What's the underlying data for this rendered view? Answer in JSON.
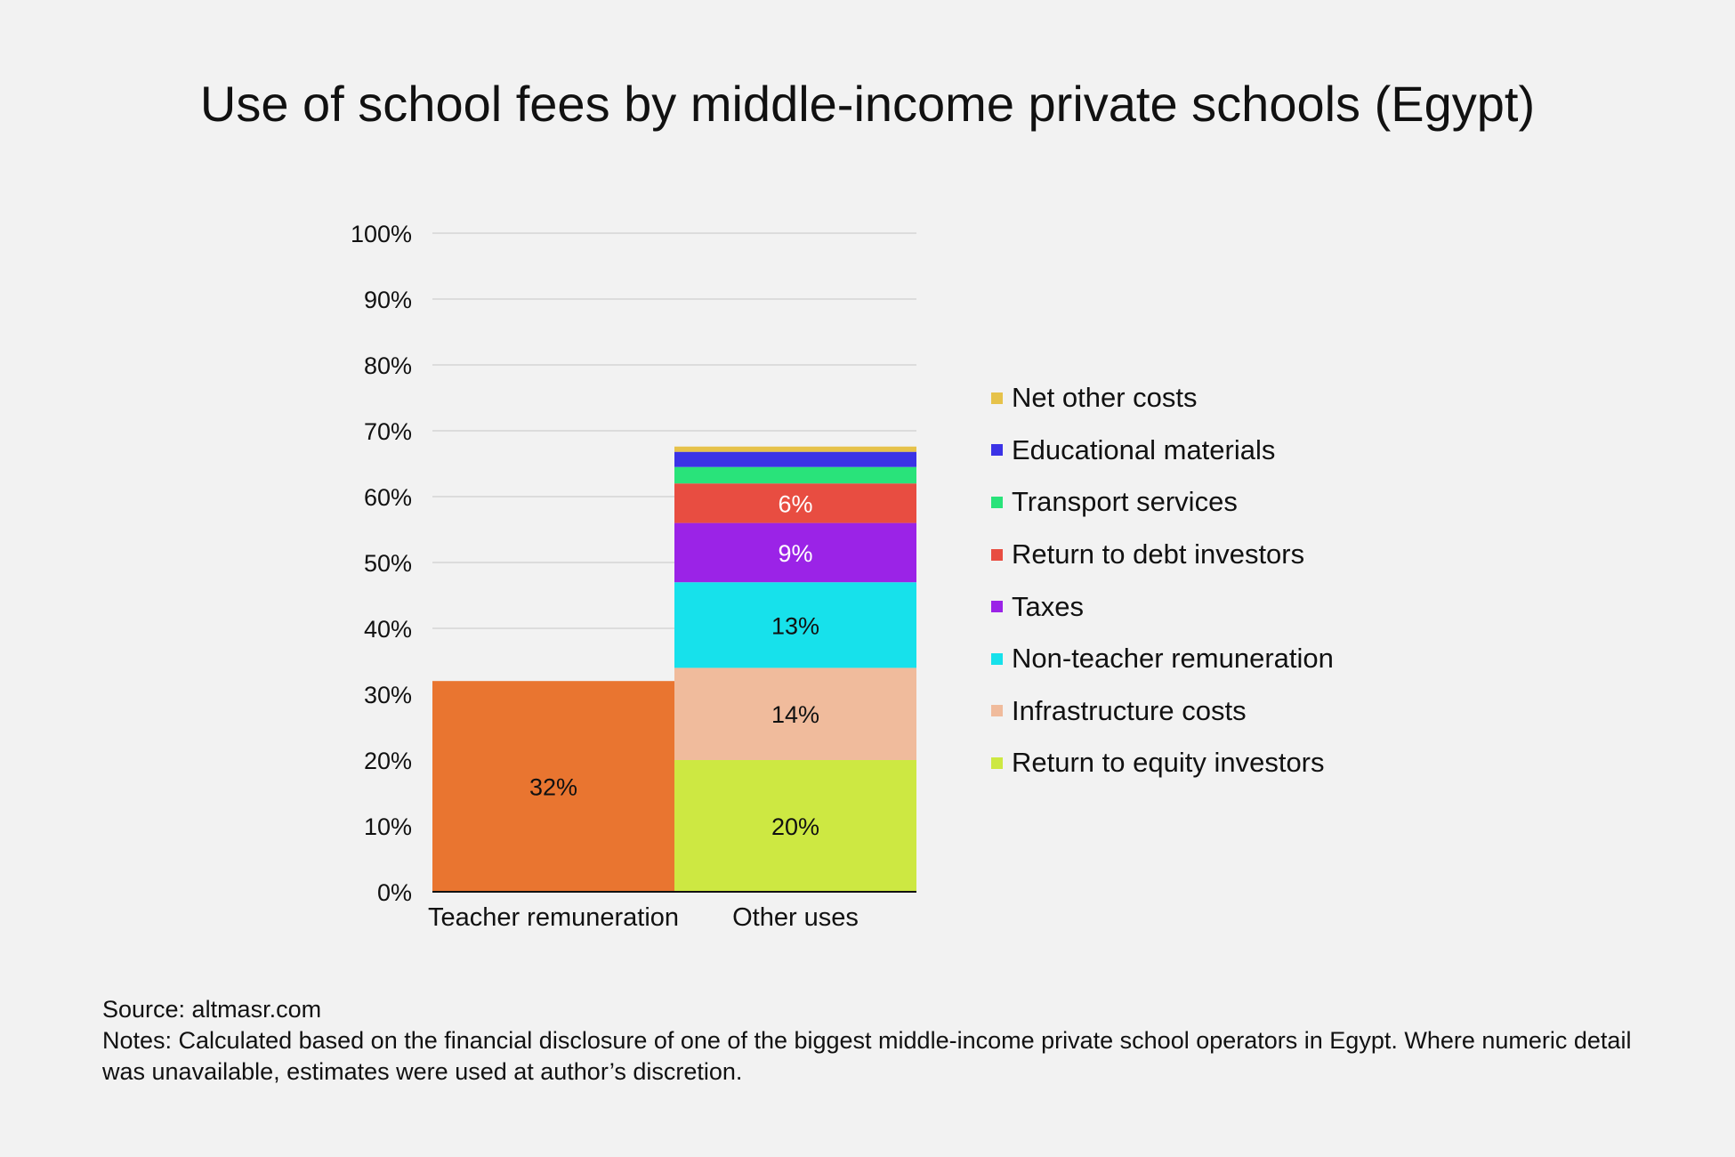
{
  "title": "Use of school fees by middle-income private schools (Egypt)",
  "chart_data": {
    "type": "bar",
    "stacked": true,
    "categories": [
      "Teacher remuneration",
      "Other uses"
    ],
    "ylim": [
      0,
      100
    ],
    "yticks": [
      "0%",
      "10%",
      "20%",
      "30%",
      "40%",
      "50%",
      "60%",
      "70%",
      "80%",
      "90%",
      "100%"
    ],
    "grid": true,
    "legend_position": "right",
    "series": [
      {
        "name": "Teacher remuneration",
        "color": "#e97530",
        "values": [
          32,
          0
        ],
        "label": "32%",
        "label_color": "#111111"
      },
      {
        "name": "Return to equity investors",
        "color": "#cde842",
        "values": [
          0,
          20
        ],
        "label": "20%",
        "label_color": "#111111"
      },
      {
        "name": "Infrastructure costs",
        "color": "#f0bb9c",
        "values": [
          0,
          14
        ],
        "label": "14%",
        "label_color": "#111111"
      },
      {
        "name": "Non-teacher remuneration",
        "color": "#17e1eb",
        "values": [
          0,
          13
        ],
        "label": "13%",
        "label_color": "#111111"
      },
      {
        "name": "Taxes",
        "color": "#9b23e7",
        "values": [
          0,
          9
        ],
        "label": "9%",
        "label_color": "#ffffff"
      },
      {
        "name": "Return to debt investors",
        "color": "#e84d41",
        "values": [
          0,
          6
        ],
        "label": "6%",
        "label_color": "#ffffff"
      },
      {
        "name": "Transport services",
        "color": "#29e37a",
        "values": [
          0,
          2.5
        ],
        "label": "",
        "label_color": "#111111"
      },
      {
        "name": "Educational materials",
        "color": "#3b33e6",
        "values": [
          0,
          2.3
        ],
        "label": "",
        "label_color": "#111111"
      },
      {
        "name": "Net other costs",
        "color": "#e6c24a",
        "values": [
          0,
          0.8
        ],
        "label": "",
        "label_color": "#111111"
      }
    ],
    "legend": [
      "Net other costs",
      "Educational materials",
      "Transport services",
      "Return to debt investors",
      "Taxes",
      "Non-teacher remuneration",
      "Infrastructure costs",
      "Return to equity investors"
    ]
  },
  "footer": {
    "source": "Source: altmasr.com",
    "notes": "Notes: Calculated based on the financial disclosure of one of the biggest middle-income private school operators in Egypt. Where numeric detail was unavailable, estimates were used at author’s discretion."
  }
}
